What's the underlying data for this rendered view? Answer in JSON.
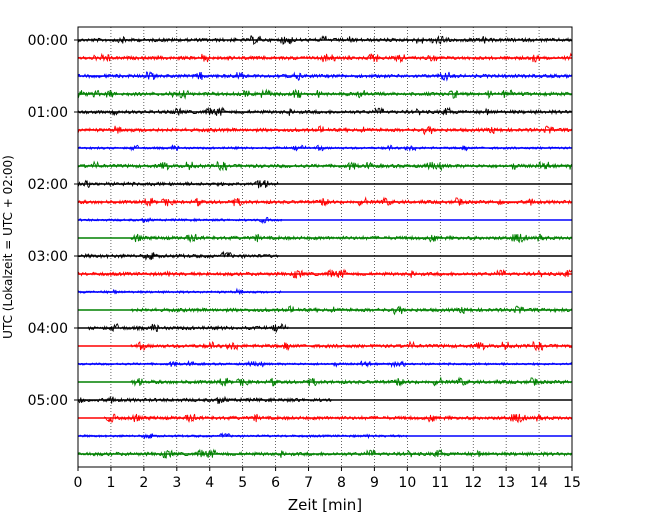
{
  "chart_data": {
    "type": "line",
    "xlabel": "Zeit  [min]",
    "ylabel": "UTC (Lokalzeit = UTC + 02:00)",
    "xlim": [
      0,
      15
    ],
    "x_ticks": [
      "0",
      "1",
      "2",
      "3",
      "4",
      "5",
      "6",
      "7",
      "8",
      "9",
      "10",
      "11",
      "12",
      "13",
      "14",
      "15"
    ],
    "y_tick_labels": [
      "00:00",
      "01:00",
      "02:00",
      "03:00",
      "04:00",
      "05:00"
    ],
    "trace_colors": [
      "#000000",
      "#ff0000",
      "#0000ff",
      "#008000"
    ],
    "traces": [
      {
        "row": 0,
        "color": "#000000",
        "start_min": 0.0,
        "end_min": 15.0,
        "amplitude": 3
      },
      {
        "row": 1,
        "color": "#ff0000",
        "start_min": 0.0,
        "end_min": 15.0,
        "amplitude": 3
      },
      {
        "row": 2,
        "color": "#0000ff",
        "start_min": 0.0,
        "end_min": 15.0,
        "amplitude": 3
      },
      {
        "row": 3,
        "color": "#008000",
        "start_min": 0.0,
        "end_min": 15.0,
        "amplitude": 3
      },
      {
        "row": 4,
        "color": "#000000",
        "start_min": 0.0,
        "end_min": 15.0,
        "amplitude": 3
      },
      {
        "row": 5,
        "color": "#ff0000",
        "start_min": 0.0,
        "end_min": 15.0,
        "amplitude": 3
      },
      {
        "row": 6,
        "color": "#0000ff",
        "start_min": 0.0,
        "end_min": 15.0,
        "amplitude": 2
      },
      {
        "row": 7,
        "color": "#008000",
        "start_min": 0.0,
        "end_min": 15.0,
        "amplitude": 3
      },
      {
        "row": 8,
        "color": "#000000",
        "start_min": 0.0,
        "end_min": 6.1,
        "amplitude": 3
      },
      {
        "row": 9,
        "color": "#ff0000",
        "start_min": 0.0,
        "end_min": 15.0,
        "amplitude": 3
      },
      {
        "row": 10,
        "color": "#0000ff",
        "start_min": 0.0,
        "end_min": 6.2,
        "amplitude": 2
      },
      {
        "row": 11,
        "color": "#008000",
        "start_min": 1.6,
        "end_min": 15.0,
        "amplitude": 3
      },
      {
        "row": 12,
        "color": "#000000",
        "start_min": 0.0,
        "end_min": 6.1,
        "amplitude": 3
      },
      {
        "row": 13,
        "color": "#ff0000",
        "start_min": 0.0,
        "end_min": 15.0,
        "amplitude": 3
      },
      {
        "row": 14,
        "color": "#0000ff",
        "start_min": 0.0,
        "end_min": 6.2,
        "amplitude": 2
      },
      {
        "row": 15,
        "color": "#008000",
        "start_min": 1.6,
        "end_min": 15.0,
        "amplitude": 3
      },
      {
        "row": 16,
        "color": "#000000",
        "start_min": 0.3,
        "end_min": 6.4,
        "amplitude": 3
      },
      {
        "row": 17,
        "color": "#ff0000",
        "start_min": 1.6,
        "end_min": 15.0,
        "amplitude": 3
      },
      {
        "row": 18,
        "color": "#0000ff",
        "start_min": 0.0,
        "end_min": 15.0,
        "amplitude": 2
      },
      {
        "row": 19,
        "color": "#008000",
        "start_min": 1.6,
        "end_min": 15.0,
        "amplitude": 3
      },
      {
        "row": 20,
        "color": "#000000",
        "start_min": 0.0,
        "end_min": 7.7,
        "amplitude": 3
      },
      {
        "row": 21,
        "color": "#ff0000",
        "start_min": 0.8,
        "end_min": 15.0,
        "amplitude": 3
      },
      {
        "row": 22,
        "color": "#0000ff",
        "start_min": 0.0,
        "end_min": 10.0,
        "amplitude": 2
      },
      {
        "row": 23,
        "color": "#008000",
        "start_min": 0.0,
        "end_min": 15.0,
        "amplitude": 3
      }
    ]
  }
}
